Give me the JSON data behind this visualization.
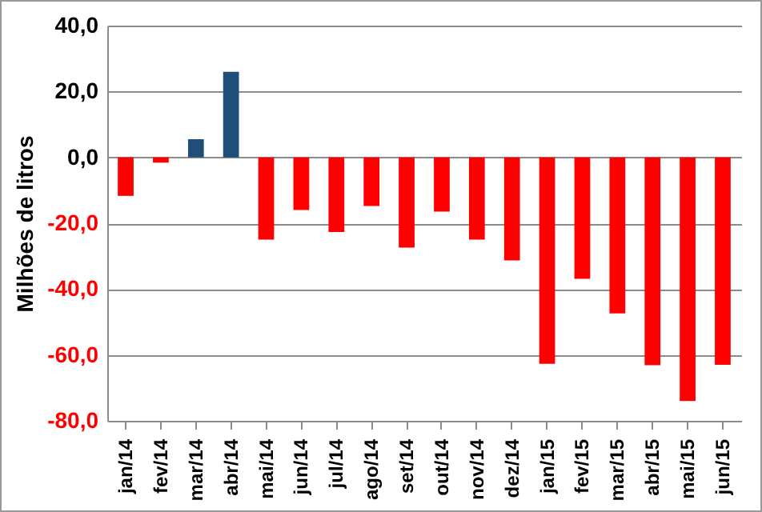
{
  "chart_data": {
    "type": "bar",
    "ylabel": "Milhões de litros",
    "categories": [
      "jan/14",
      "fev/14",
      "mar/14",
      "abr/14",
      "mai/14",
      "jun/14",
      "jul/14",
      "ago/14",
      "set/14",
      "out/14",
      "nov/14",
      "dez/14",
      "jan/15",
      "fev/15",
      "mar/15",
      "abr/15",
      "mai/15",
      "jun/15"
    ],
    "values": [
      -11.7,
      -1.6,
      5.5,
      26,
      -25,
      -16,
      -22.7,
      -14.8,
      -27.4,
      -16.5,
      -25,
      -31.3,
      -62.7,
      -36.9,
      -47.4,
      -63.1,
      -74,
      -63
    ],
    "colors": [
      "#ff0000",
      "#ff0000",
      "#1f4e79",
      "#1f4e79",
      "#ff0000",
      "#ff0000",
      "#ff0000",
      "#ff0000",
      "#ff0000",
      "#ff0000",
      "#ff0000",
      "#ff0000",
      "#ff0000",
      "#ff0000",
      "#ff0000",
      "#ff0000",
      "#ff0000",
      "#ff0000"
    ],
    "ylim": [
      -80,
      40
    ],
    "yticks": [
      {
        "value": -80,
        "label": "-80,0"
      },
      {
        "value": -60,
        "label": "-60,0"
      },
      {
        "value": -40,
        "label": "-40,0"
      },
      {
        "value": -20,
        "label": "-20,0"
      },
      {
        "value": 0,
        "label": "0,0"
      },
      {
        "value": 20,
        "label": "20,0"
      },
      {
        "value": 40,
        "label": "40,0"
      }
    ],
    "grid": "y"
  }
}
